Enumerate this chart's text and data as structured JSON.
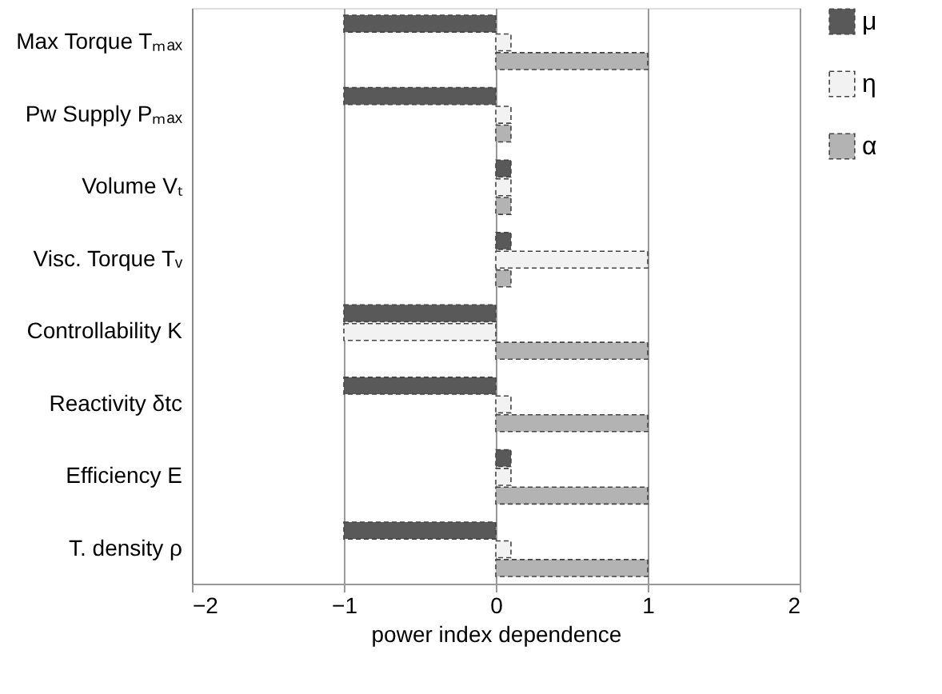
{
  "chart_data": {
    "type": "bar",
    "orientation": "horizontal",
    "categories": [
      "Max Torque  Tₘₐₓ",
      "Pw Supply  Pₘₐₓ",
      "Volume  Vₜ",
      "Visc. Torque  Tᵥ",
      "Controllability  K",
      "Reactivity  δtc",
      "Efficiency  E",
      "T. density  ρ"
    ],
    "series": [
      {
        "name": "μ",
        "color": "#595959",
        "values": [
          -1,
          -1,
          0.1,
          0.1,
          -1,
          -1,
          0.1,
          -1
        ]
      },
      {
        "name": "η",
        "color": "#f2f2f2",
        "values": [
          0.1,
          0.1,
          0.1,
          1,
          -1,
          0.1,
          0.1,
          0.1
        ]
      },
      {
        "name": "α",
        "color": "#b3b3b3",
        "values": [
          1,
          0.1,
          0.1,
          0.1,
          1,
          1,
          1,
          1
        ]
      }
    ],
    "xlabel": "power index dependence",
    "xlim": [
      -2,
      2
    ],
    "xticks": [
      -2,
      -1,
      0,
      1,
      2
    ],
    "grid": "x",
    "legend": "right"
  }
}
